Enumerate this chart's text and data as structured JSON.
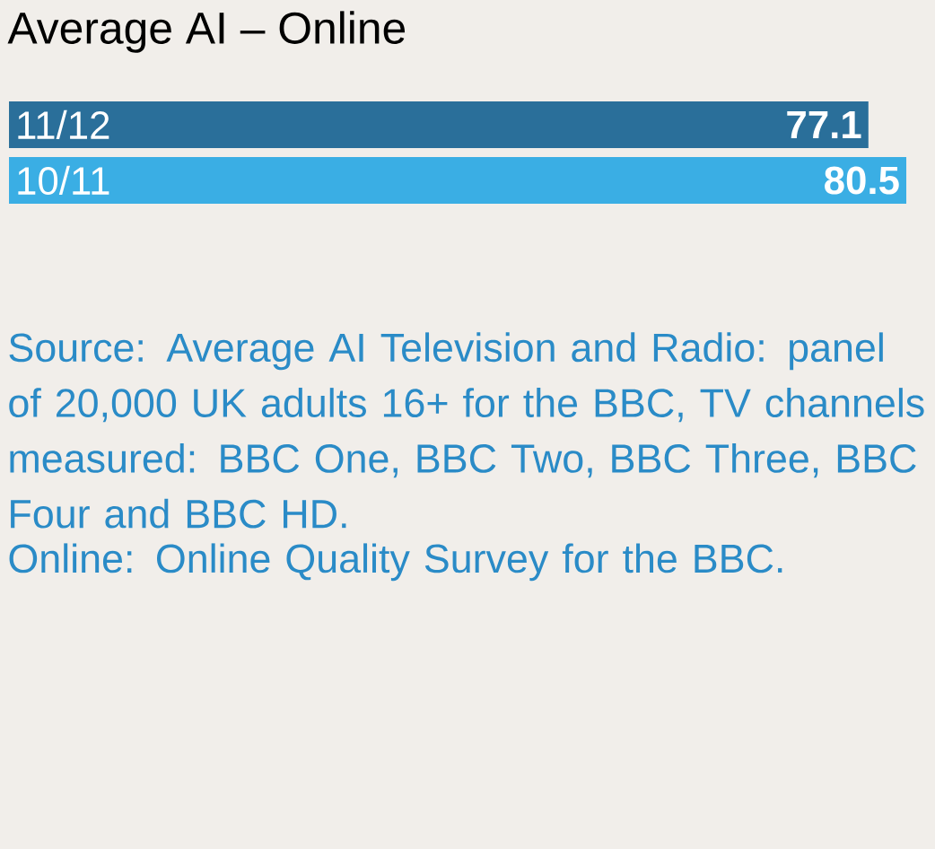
{
  "chart_data": {
    "type": "bar",
    "orientation": "horizontal",
    "title": "Average AI – Online",
    "categories": [
      "11/12",
      "10/11"
    ],
    "values": [
      77.1,
      80.5
    ],
    "colors": [
      "#2a6f9a",
      "#3aaee4"
    ],
    "data_labels": true,
    "annotations": [
      "Source: Average AI Television and Radio: panel of 20,000 UK adults 16+ for the BBC, TV channels measured: BBC One, BBC Two, BBC Three, BBC Four and BBC HD.",
      "Online: Online Quality Survey for the BBC."
    ]
  }
}
